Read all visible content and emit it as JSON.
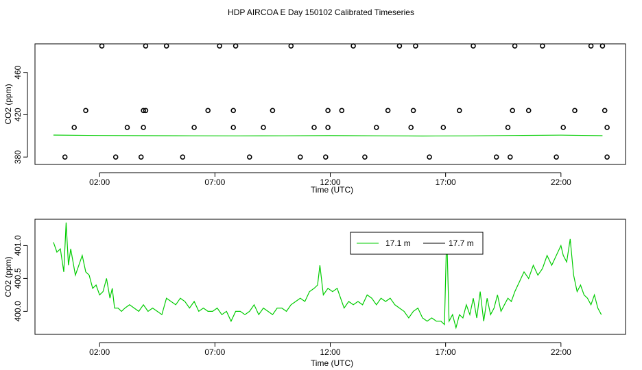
{
  "title": "HDP AIRCOA E  Day 150102  Calibrated Timeseries",
  "colors": {
    "series_17_1": "#00cc00",
    "series_17_7": "#000000",
    "flag_points": "#000000"
  },
  "chart_data": [
    {
      "type": "scatter",
      "xlabel": "Time (UTC)",
      "ylabel": "CO2 (ppm)",
      "x_tick_labels": [
        "02:00",
        "07:00",
        "12:00",
        "17:00",
        "22:00"
      ],
      "x_ticks_hours": [
        2,
        7,
        12,
        17,
        22
      ],
      "y_tick_labels": [
        "380",
        "420",
        "460"
      ],
      "y_ticks": [
        380,
        420,
        460
      ],
      "xlim": [
        -0.8,
        24.8
      ],
      "ylim": [
        373,
        487
      ],
      "grid": false,
      "series": [
        {
          "type": "line",
          "color": "#00cc00",
          "x": [
            0,
            2,
            4,
            6,
            8,
            10,
            12,
            14,
            16,
            18,
            20,
            22,
            23.8
          ],
          "values": [
            400.8,
            400.4,
            400.2,
            400.1,
            400.0,
            400.1,
            400.3,
            400.1,
            399.9,
            400.0,
            400.4,
            400.7,
            400.2
          ]
        },
        {
          "type": "points",
          "marker": "open-circle",
          "x": [
            0.5,
            0.9,
            1.4,
            2.1,
            2.7,
            3.2,
            3.8,
            3.9,
            3.9,
            4.0,
            4.0,
            4.9,
            5.6,
            6.1,
            6.7,
            7.2,
            7.8,
            7.8,
            7.9,
            8.5,
            9.1,
            9.5,
            10.3,
            10.7,
            11.3,
            11.8,
            11.9,
            11.9,
            12.5,
            13.0,
            13.5,
            14.0,
            14.5,
            15.0,
            15.5,
            15.6,
            15.7,
            16.3,
            16.9,
            17.6,
            18.2,
            19.2,
            19.7,
            19.8,
            19.9,
            20.0,
            20.6,
            21.2,
            21.8,
            22.1,
            22.6,
            23.3,
            23.8,
            23.9,
            24.0,
            24.0
          ],
          "values": [
            380,
            408,
            424,
            485,
            380,
            408,
            380,
            408,
            424,
            424,
            485,
            485,
            380,
            408,
            424,
            485,
            408,
            424,
            485,
            380,
            408,
            424,
            485,
            380,
            408,
            380,
            408,
            424,
            424,
            485,
            380,
            408,
            424,
            485,
            408,
            424,
            485,
            380,
            408,
            424,
            485,
            380,
            408,
            380,
            424,
            485,
            424,
            485,
            380,
            408,
            424,
            485,
            485,
            424,
            408,
            380
          ]
        }
      ]
    },
    {
      "type": "line",
      "xlabel": "Time (UTC)",
      "ylabel": "CO2 (ppm)",
      "x_tick_labels": [
        "02:00",
        "07:00",
        "12:00",
        "17:00",
        "22:00"
      ],
      "x_ticks_hours": [
        2,
        7,
        12,
        17,
        22
      ],
      "y_tick_labels": [
        "400.0",
        "400.5",
        "401.0"
      ],
      "y_ticks": [
        400.0,
        400.5,
        401.0
      ],
      "xlim": [
        -0.8,
        24.8
      ],
      "ylim": [
        399.65,
        401.4
      ],
      "grid": false,
      "legend": {
        "placement": "top-right",
        "entries": [
          "17.1 m",
          "17.7 m"
        ]
      },
      "series": [
        {
          "name": "17.1 m",
          "color": "#00cc00",
          "x": [
            0,
            0.15,
            0.3,
            0.45,
            0.55,
            0.65,
            0.75,
            0.85,
            0.95,
            1.1,
            1.25,
            1.4,
            1.55,
            1.7,
            1.85,
            2.0,
            2.15,
            2.3,
            2.45,
            2.55,
            2.65,
            2.8,
            2.95,
            3.1,
            3.3,
            3.5,
            3.7,
            3.9,
            4.1,
            4.3,
            4.5,
            4.7,
            4.9,
            5.1,
            5.3,
            5.5,
            5.7,
            5.9,
            6.1,
            6.3,
            6.5,
            6.7,
            6.9,
            7.1,
            7.3,
            7.5,
            7.7,
            7.9,
            8.1,
            8.3,
            8.5,
            8.7,
            8.9,
            9.1,
            9.3,
            9.5,
            9.7,
            9.9,
            10.1,
            10.3,
            10.5,
            10.7,
            10.9,
            11.1,
            11.3,
            11.45,
            11.55,
            11.7,
            11.9,
            12.1,
            12.3,
            12.45,
            12.6,
            12.8,
            13.0,
            13.2,
            13.4,
            13.6,
            13.8,
            14.0,
            14.2,
            14.4,
            14.6,
            14.8,
            15.0,
            15.2,
            15.4,
            15.6,
            15.8,
            16.0,
            16.2,
            16.4,
            16.6,
            16.8,
            16.95,
            17.05,
            17.15,
            17.3,
            17.45,
            17.6,
            17.75,
            17.9,
            18.05,
            18.2,
            18.35,
            18.5,
            18.65,
            18.8,
            18.95,
            19.1,
            19.25,
            19.4,
            19.55,
            19.7,
            19.85,
            20.0,
            20.2,
            20.4,
            20.6,
            20.8,
            21.0,
            21.2,
            21.4,
            21.6,
            21.8,
            22.0,
            22.1,
            22.25,
            22.4,
            22.55,
            22.7,
            22.85,
            23.0,
            23.15,
            23.3,
            23.45,
            23.6,
            23.75
          ],
          "values": [
            401.05,
            400.9,
            400.95,
            400.6,
            401.35,
            400.7,
            400.95,
            400.75,
            400.55,
            400.7,
            400.85,
            400.6,
            400.55,
            400.35,
            400.4,
            400.25,
            400.3,
            400.5,
            400.2,
            400.35,
            400.05,
            400.05,
            400.0,
            400.05,
            400.1,
            400.05,
            400.0,
            400.1,
            400.0,
            400.05,
            400.0,
            399.95,
            400.2,
            400.15,
            400.1,
            400.2,
            400.15,
            400.05,
            400.15,
            400.0,
            400.05,
            400.0,
            400.0,
            400.05,
            399.95,
            400.0,
            399.85,
            400.0,
            400.0,
            399.95,
            400.0,
            400.1,
            399.95,
            400.05,
            400.0,
            399.95,
            400.05,
            400.05,
            400.0,
            400.1,
            400.15,
            400.2,
            400.15,
            400.3,
            400.35,
            400.4,
            400.7,
            400.25,
            400.35,
            400.3,
            400.35,
            400.2,
            400.05,
            400.15,
            400.1,
            400.15,
            400.1,
            400.25,
            400.2,
            400.1,
            400.2,
            400.15,
            400.2,
            400.1,
            400.05,
            400.0,
            399.9,
            400.0,
            400.05,
            399.9,
            399.85,
            399.9,
            399.85,
            399.85,
            399.8,
            401.2,
            399.85,
            399.95,
            399.75,
            399.95,
            399.9,
            400.1,
            399.95,
            400.2,
            399.9,
            400.3,
            399.85,
            400.2,
            399.95,
            400.05,
            400.25,
            400.0,
            400.1,
            400.2,
            400.15,
            400.3,
            400.45,
            400.6,
            400.5,
            400.7,
            400.55,
            400.65,
            400.85,
            400.7,
            400.85,
            401.0,
            400.85,
            400.75,
            401.1,
            400.55,
            400.3,
            400.4,
            400.25,
            400.2,
            400.1,
            400.25,
            400.05,
            399.95
          ]
        },
        {
          "name": "17.7 m",
          "color": "#000000",
          "x": [],
          "values": []
        }
      ]
    }
  ]
}
